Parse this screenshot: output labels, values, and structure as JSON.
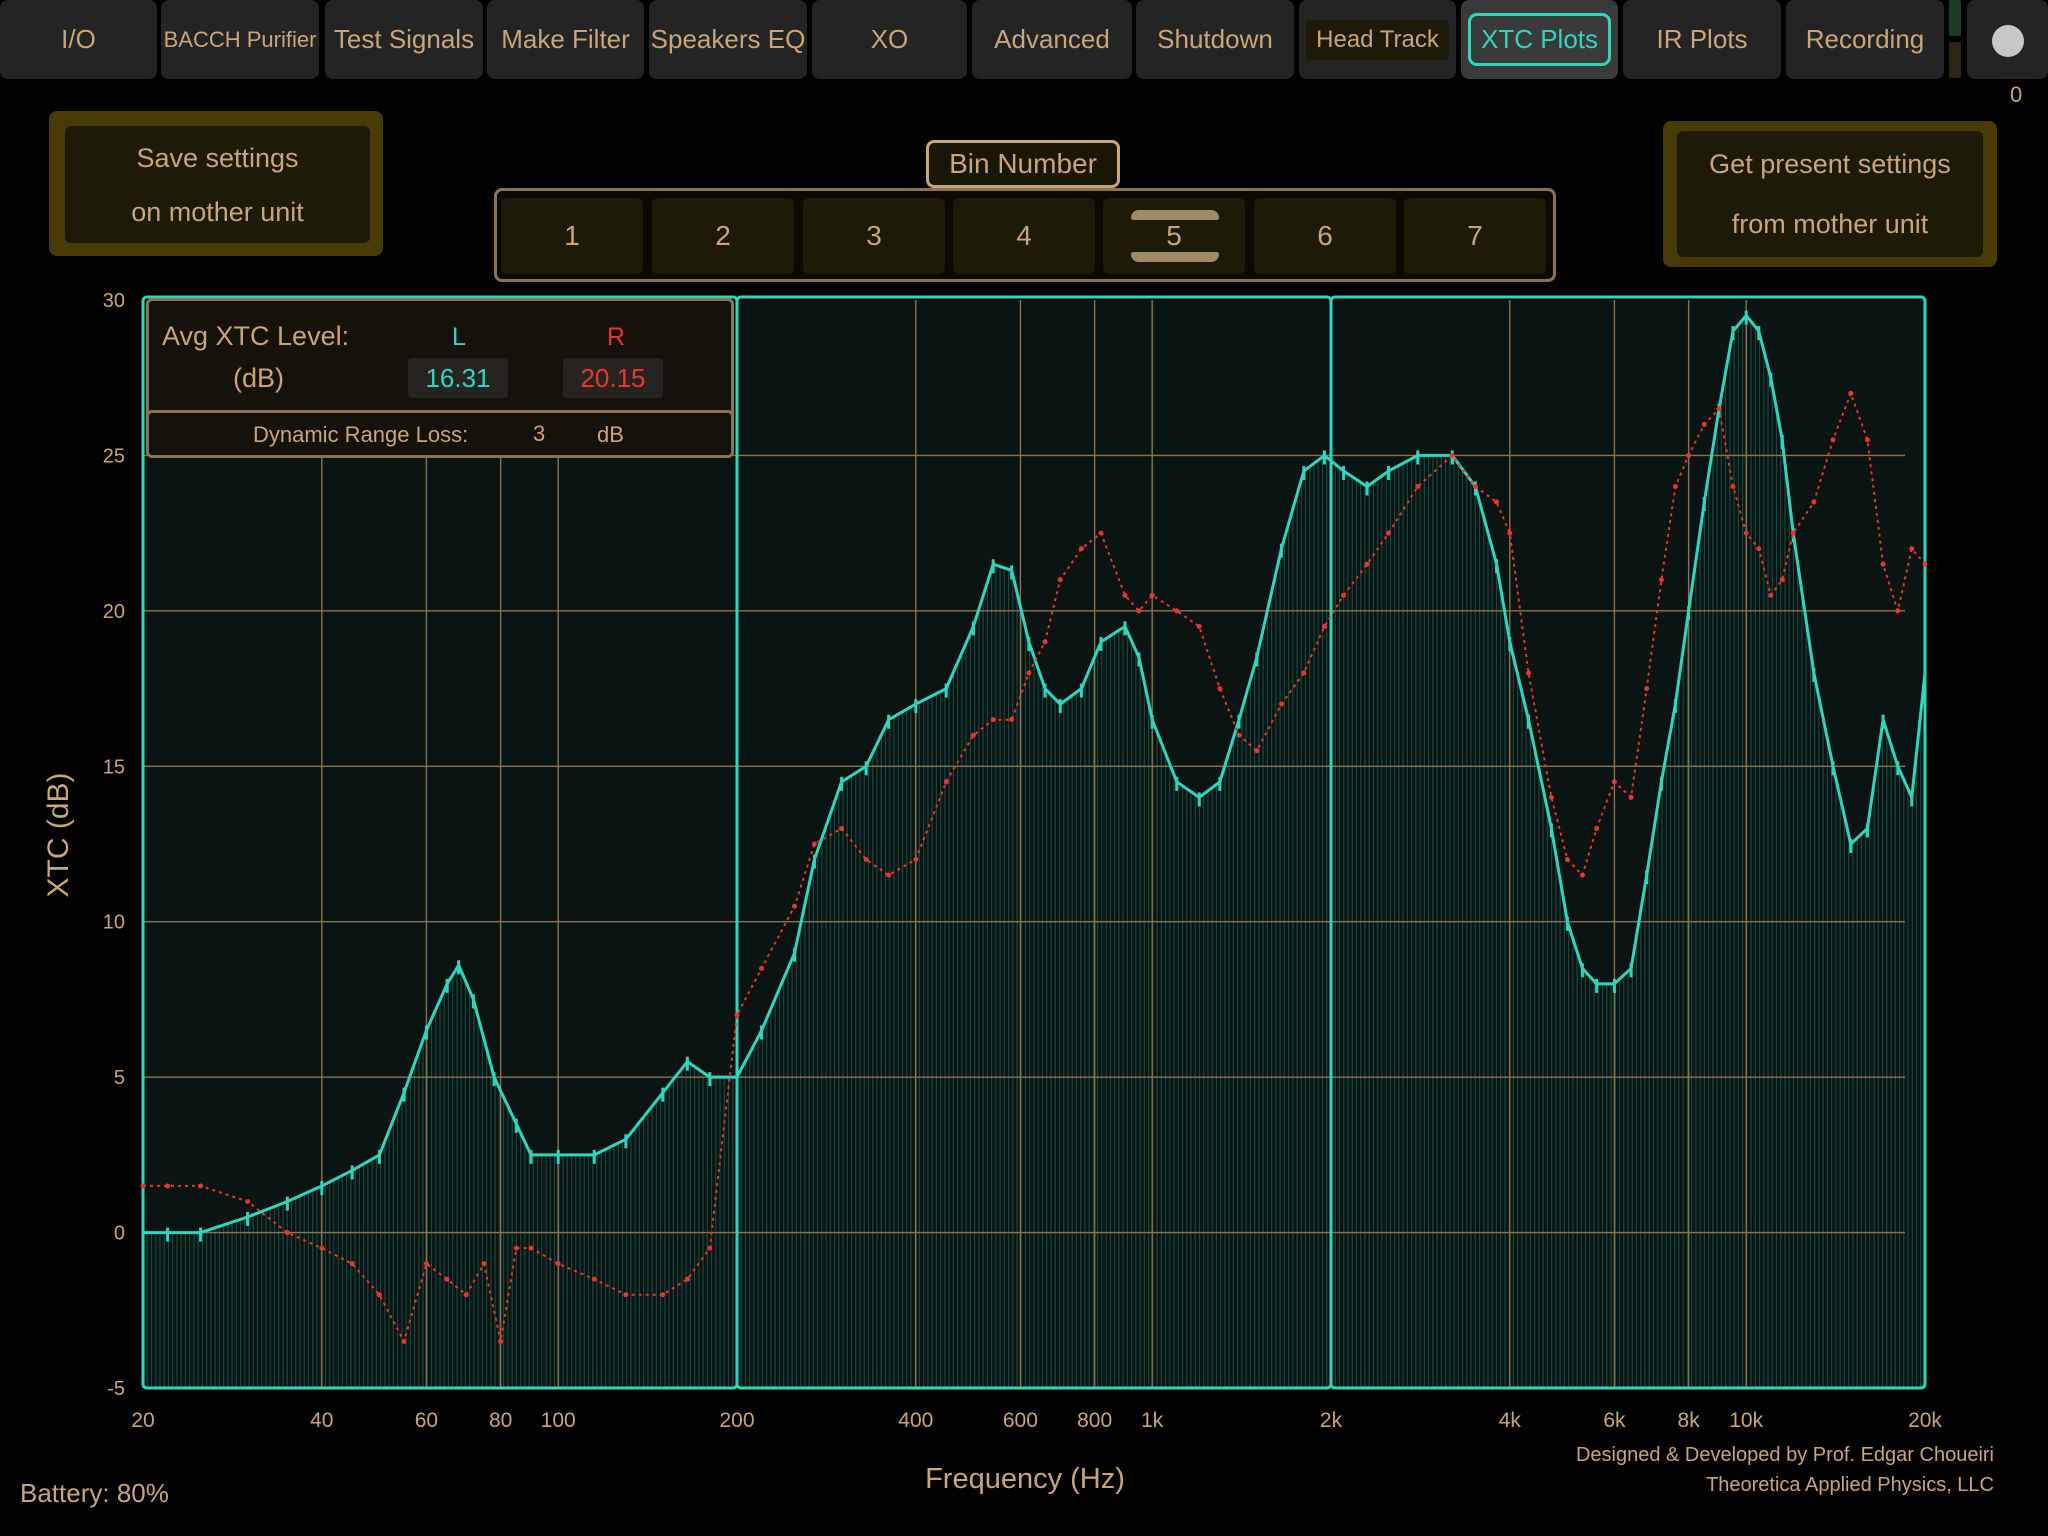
{
  "tabs": [
    {
      "label": "I/O"
    },
    {
      "label": "BACCH Purifier"
    },
    {
      "label": "Test Signals"
    },
    {
      "label": "Make Filter"
    },
    {
      "label": "Speakers EQ"
    },
    {
      "label": "XO"
    },
    {
      "label": "Advanced"
    },
    {
      "label": "Shutdown"
    },
    {
      "label": "Head Track"
    },
    {
      "label": "XTC Plots",
      "active": true
    },
    {
      "label": "IR Plots"
    },
    {
      "label": "Recording"
    }
  ],
  "status_counter": "0",
  "save_settings": {
    "line1": "Save settings",
    "line2": "on mother unit"
  },
  "get_settings": {
    "line1": "Get present settings",
    "line2": "from mother unit"
  },
  "bin": {
    "label": "Bin Number",
    "options": [
      "1",
      "2",
      "3",
      "4",
      "5",
      "6",
      "7"
    ],
    "selected": "5"
  },
  "avg": {
    "title": "Avg XTC Level:",
    "unit": "(dB)",
    "l_label": "L",
    "r_label": "R",
    "l_value": "16.31",
    "r_value": "20.15",
    "drl_label": "Dynamic Range Loss:",
    "drl_value": "3",
    "drl_unit": "dB"
  },
  "colors": {
    "accent": "#2fd6bd",
    "left": "#2fd6bd",
    "right": "#e8362a",
    "text": "#c9a57a"
  },
  "chart_data": {
    "type": "line",
    "xlabel": "Frequency (Hz)",
    "ylabel": "XTC (dB)",
    "xscale": "log",
    "xlim": [
      20,
      20000
    ],
    "ylim": [
      -5,
      30
    ],
    "x_ticks": [
      20,
      40,
      60,
      80,
      100,
      200,
      400,
      600,
      800,
      1000,
      2000,
      4000,
      6000,
      8000,
      10000,
      20000
    ],
    "x_tick_labels": [
      "20",
      "40",
      "60",
      "80",
      "100",
      "200",
      "400",
      "600",
      "800",
      "1k",
      "2k",
      "4k",
      "6k",
      "8k",
      "10k",
      "20k"
    ],
    "y_ticks": [
      -5,
      0,
      5,
      10,
      15,
      20,
      25,
      30
    ],
    "series": [
      {
        "name": "L",
        "x": [
          20,
          22,
          25,
          30,
          35,
          40,
          45,
          50,
          55,
          60,
          65,
          68,
          72,
          78,
          85,
          90,
          100,
          115,
          130,
          150,
          165,
          180,
          200,
          220,
          250,
          270,
          300,
          330,
          360,
          400,
          450,
          500,
          540,
          580,
          620,
          660,
          700,
          760,
          820,
          900,
          950,
          1000,
          1100,
          1200,
          1300,
          1400,
          1500,
          1650,
          1800,
          1950,
          2100,
          2300,
          2500,
          2800,
          3200,
          3500,
          3800,
          4000,
          4300,
          4700,
          5000,
          5300,
          5600,
          6000,
          6400,
          6800,
          7200,
          7600,
          8000,
          8500,
          9000,
          9500,
          10000,
          10500,
          11000,
          11500,
          12000,
          13000,
          14000,
          15000,
          16000,
          17000,
          18000,
          19000,
          20000
        ],
        "values": [
          0.0,
          0.0,
          0.0,
          0.5,
          1.0,
          1.5,
          2.0,
          2.5,
          4.5,
          6.5,
          8.0,
          8.6,
          7.5,
          5.0,
          3.5,
          2.5,
          2.5,
          2.5,
          3.0,
          4.5,
          5.5,
          5.0,
          5.0,
          6.5,
          9.0,
          12.0,
          14.5,
          15.0,
          16.5,
          17.0,
          17.5,
          19.5,
          21.5,
          21.3,
          19.0,
          17.5,
          17.0,
          17.5,
          19.0,
          19.5,
          18.5,
          16.5,
          14.5,
          14.0,
          14.5,
          16.5,
          18.5,
          22.0,
          24.5,
          25.0,
          24.5,
          24.0,
          24.5,
          25.0,
          25.0,
          24.0,
          21.5,
          19.0,
          16.5,
          13.0,
          10.0,
          8.5,
          8.0,
          8.0,
          8.5,
          11.5,
          14.5,
          17.0,
          20.0,
          23.5,
          26.5,
          29.0,
          29.5,
          29.0,
          27.5,
          25.5,
          22.5,
          18.0,
          15.0,
          12.5,
          13.0,
          16.5,
          15.0,
          14.0,
          18.0
        ]
      },
      {
        "name": "R",
        "x": [
          20,
          22,
          25,
          30,
          35,
          40,
          45,
          50,
          55,
          60,
          65,
          70,
          75,
          80,
          85,
          90,
          100,
          115,
          130,
          150,
          165,
          180,
          200,
          220,
          250,
          270,
          300,
          330,
          360,
          400,
          450,
          500,
          540,
          580,
          620,
          660,
          700,
          760,
          820,
          900,
          950,
          1000,
          1100,
          1200,
          1300,
          1400,
          1500,
          1650,
          1800,
          1950,
          2100,
          2300,
          2500,
          2800,
          3200,
          3500,
          3800,
          4000,
          4300,
          4700,
          5000,
          5300,
          5600,
          6000,
          6400,
          6800,
          7200,
          7600,
          8000,
          8500,
          9000,
          9500,
          10000,
          10500,
          11000,
          11500,
          12000,
          13000,
          14000,
          15000,
          16000,
          17000,
          18000,
          19000,
          20000
        ],
        "values": [
          1.5,
          1.5,
          1.5,
          1.0,
          0.0,
          -0.5,
          -1.0,
          -2.0,
          -3.5,
          -1.0,
          -1.5,
          -2.0,
          -1.0,
          -3.5,
          -0.5,
          -0.5,
          -1.0,
          -1.5,
          -2.0,
          -2.0,
          -1.5,
          -0.5,
          7.0,
          8.5,
          10.5,
          12.5,
          13.0,
          12.0,
          11.5,
          12.0,
          14.5,
          16.0,
          16.5,
          16.5,
          18.0,
          19.0,
          21.0,
          22.0,
          22.5,
          20.5,
          20.0,
          20.5,
          20.0,
          19.5,
          17.5,
          16.0,
          15.5,
          17.0,
          18.0,
          19.5,
          20.5,
          21.5,
          22.5,
          24.0,
          25.0,
          24.0,
          23.5,
          22.5,
          18.0,
          14.0,
          12.0,
          11.5,
          13.0,
          14.5,
          14.0,
          17.5,
          21.0,
          24.0,
          25.0,
          26.0,
          26.5,
          24.0,
          22.5,
          22.0,
          20.5,
          21.0,
          22.5,
          23.5,
          25.5,
          27.0,
          25.5,
          21.5,
          20.0,
          22.0,
          21.5
        ]
      }
    ]
  },
  "footer": {
    "battery": "Battery: 80%",
    "credit1": "Designed & Developed by Prof. Edgar Choueiri",
    "credit2": "Theoretica Applied Physics, LLC"
  }
}
